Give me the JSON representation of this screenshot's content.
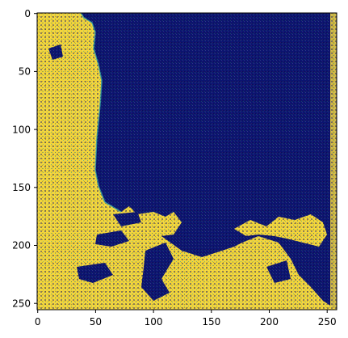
{
  "image_plot": {
    "x_ticks": [
      "0",
      "50",
      "100",
      "150",
      "200",
      "250"
    ],
    "y_ticks": [
      "0",
      "50",
      "100",
      "150",
      "200",
      "250"
    ],
    "x_range": [
      0,
      256
    ],
    "y_range": [
      0,
      256
    ],
    "colors": {
      "sea": "#0b1470",
      "land": "#f2d43a",
      "coast": "#2fa0a8",
      "axis": "#000000"
    }
  }
}
